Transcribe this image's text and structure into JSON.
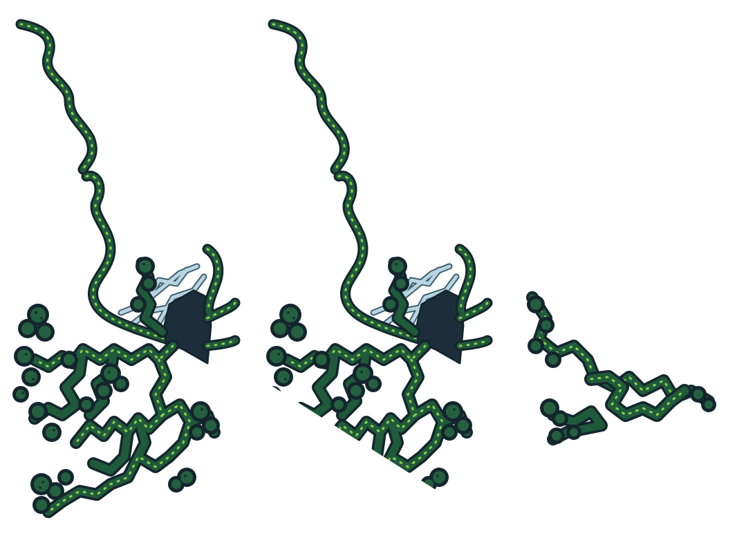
{
  "scene": {
    "subject": "neuron-illustration",
    "panels": [
      "full-neuron",
      "clipped-neuron",
      "dendrite-fragment"
    ]
  },
  "colors": {
    "outline": "#14252d",
    "dendrite_fill": "#1f5a3b",
    "highlight": "#8fcf4a",
    "pale_branches": "#b9d5e3",
    "soma": "#1c2e3c",
    "background": "#ffffff"
  }
}
